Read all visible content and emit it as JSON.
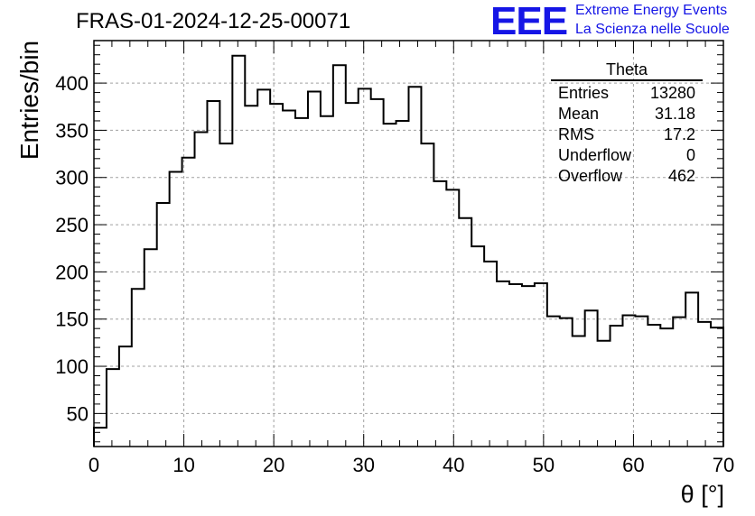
{
  "header": {
    "title": "FRAS-01-2024-12-25-00071"
  },
  "logo": {
    "mark": "EEE",
    "line1": "Extreme Energy Events",
    "line2": "La Scienza nelle Scuole",
    "color": "#1515e6"
  },
  "stats": {
    "title": "Theta",
    "rows": [
      {
        "label": "Entries",
        "value": "13280"
      },
      {
        "label": "Mean",
        "value": "31.18"
      },
      {
        "label": "RMS",
        "value": "17.2"
      },
      {
        "label": "Underflow",
        "value": "0"
      },
      {
        "label": "Overflow",
        "value": "462"
      }
    ]
  },
  "chart_data": {
    "type": "histogram",
    "title": "FRAS-01-2024-12-25-00071",
    "xlabel": "θ [°]",
    "ylabel": "Entries/bin",
    "xlim": [
      0,
      70
    ],
    "ylim": [
      15,
      445
    ],
    "bin_width": 1.4,
    "x_ticks": [
      "0",
      "10",
      "20",
      "30",
      "40",
      "50",
      "60",
      "70"
    ],
    "y_ticks": [
      "50",
      "100",
      "150",
      "200",
      "250",
      "300",
      "350",
      "400"
    ],
    "grid": true,
    "line_color": "#000000",
    "values": [
      35,
      97,
      121,
      182,
      224,
      273,
      306,
      321,
      348,
      381,
      336,
      429,
      376,
      393,
      378,
      371,
      363,
      391,
      365,
      419,
      379,
      394,
      383,
      357,
      360,
      396,
      336,
      296,
      287,
      257,
      227,
      211,
      190,
      187,
      185,
      188,
      153,
      151,
      132,
      159,
      127,
      143,
      154,
      153,
      144,
      140,
      152,
      178,
      147,
      141
    ]
  }
}
